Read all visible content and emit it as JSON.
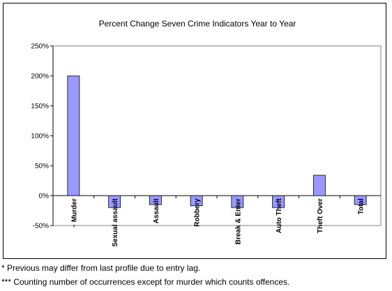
{
  "chart_data": {
    "type": "bar",
    "title": "Percent Change Seven Crime Indicators Year to Year",
    "categories": [
      "Murder",
      "Sexual assault",
      "Assault",
      "Robbery",
      "Break & Enter",
      "Auto Theft",
      "Theft Over",
      "Total"
    ],
    "category_prefixes": [
      "**",
      "",
      "",
      "",
      "",
      "",
      "",
      ""
    ],
    "values": [
      200,
      -20,
      -15,
      -17,
      -20,
      -20,
      34,
      -15
    ],
    "ylim": [
      -50,
      250
    ],
    "yticks": [
      -50,
      0,
      50,
      100,
      150,
      200,
      250
    ],
    "ytick_labels": [
      "-50%",
      "0%",
      "50%",
      "100%",
      "150%",
      "200%",
      "250%"
    ],
    "grid": false,
    "bar_color": "#9999ff",
    "plot_background": "#ffffff"
  },
  "footnotes": [
    "* Previous may differ from last profile due to entry lag.",
    "*** Counting number of occurrences except for murder which counts offences."
  ]
}
